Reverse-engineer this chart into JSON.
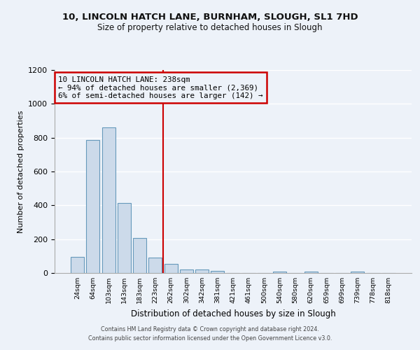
{
  "title": "10, LINCOLN HATCH LANE, BURNHAM, SLOUGH, SL1 7HD",
  "subtitle": "Size of property relative to detached houses in Slough",
  "xlabel": "Distribution of detached houses by size in Slough",
  "ylabel": "Number of detached properties",
  "bar_labels": [
    "24sqm",
    "64sqm",
    "103sqm",
    "143sqm",
    "183sqm",
    "223sqm",
    "262sqm",
    "302sqm",
    "342sqm",
    "381sqm",
    "421sqm",
    "461sqm",
    "500sqm",
    "540sqm",
    "580sqm",
    "620sqm",
    "659sqm",
    "699sqm",
    "739sqm",
    "778sqm",
    "818sqm"
  ],
  "bar_values": [
    95,
    785,
    862,
    415,
    205,
    90,
    52,
    20,
    20,
    13,
    0,
    0,
    0,
    10,
    0,
    10,
    0,
    0,
    10,
    0,
    0
  ],
  "bar_color": "#ccdaea",
  "bar_edge_color": "#6699bb",
  "vline_x": 5.5,
  "vline_color": "#cc0000",
  "annotation_line1": "10 LINCOLN HATCH LANE: 238sqm",
  "annotation_line2": "← 94% of detached houses are smaller (2,369)",
  "annotation_line3": "6% of semi-detached houses are larger (142) →",
  "annotation_box_color": "#cc0000",
  "ylim": [
    0,
    1200
  ],
  "yticks": [
    0,
    200,
    400,
    600,
    800,
    1000,
    1200
  ],
  "footer_line1": "Contains HM Land Registry data © Crown copyright and database right 2024.",
  "footer_line2": "Contains public sector information licensed under the Open Government Licence v3.0.",
  "background_color": "#edf2f9",
  "grid_color": "#ffffff"
}
